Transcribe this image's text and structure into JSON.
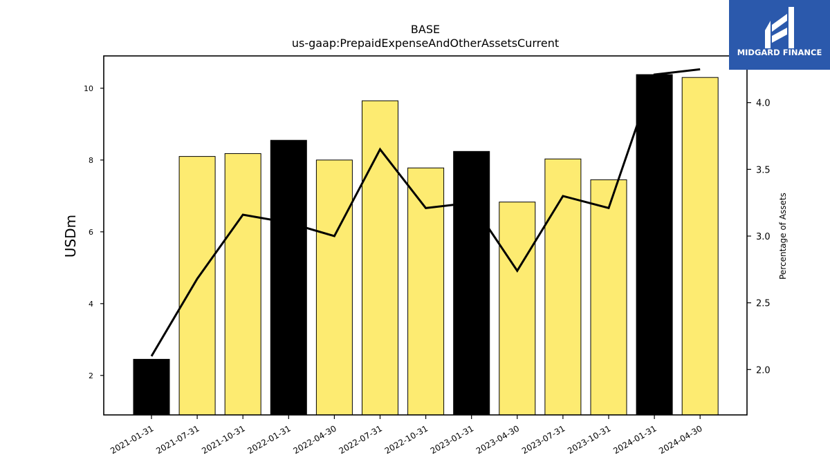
{
  "chart_data": {
    "type": "bar",
    "title": "BASE",
    "subtitle": "us-gaap:PrepaidExpenseAndOtherAssetsCurrent",
    "ylabel": "USDm",
    "y2label": "Percentage of Assets",
    "categories": [
      "2021-01-31",
      "2021-07-31",
      "2021-10-31",
      "2022-01-31",
      "2022-04-30",
      "2022-07-31",
      "2022-10-31",
      "2023-01-31",
      "2023-04-30",
      "2023-07-31",
      "2023-10-31",
      "2024-01-31",
      "2024-04-30"
    ],
    "series": [
      {
        "kind": "bar",
        "axis": "left",
        "values": [
          2.45,
          8.1,
          8.18,
          8.55,
          8.0,
          9.65,
          7.78,
          8.24,
          6.83,
          8.03,
          7.45,
          10.38,
          10.3
        ],
        "colors": [
          "#000000",
          "#fdeb71",
          "#fdeb71",
          "#000000",
          "#fdeb71",
          "#fdeb71",
          "#fdeb71",
          "#000000",
          "#fdeb71",
          "#fdeb71",
          "#fdeb71",
          "#000000",
          "#fdeb71"
        ]
      },
      {
        "kind": "line",
        "axis": "right",
        "color": "#000000",
        "values": [
          2.1,
          2.68,
          3.16,
          3.1,
          3.0,
          3.65,
          3.21,
          3.25,
          2.74,
          3.3,
          3.21,
          4.21,
          4.25
        ]
      }
    ],
    "ylim": [
      0.9,
      10.9
    ],
    "yticks": [
      2,
      4,
      6,
      8,
      10
    ],
    "y2lim": [
      1.66,
      4.35
    ],
    "y2ticks": [
      "2.0",
      "2.5",
      "3.0",
      "3.5",
      "4.0"
    ],
    "grid": false,
    "legend": "none"
  },
  "logo": {
    "text": "MIDGARD FINANCE",
    "background": "#2b59ac",
    "text_color": "#ffffff"
  }
}
